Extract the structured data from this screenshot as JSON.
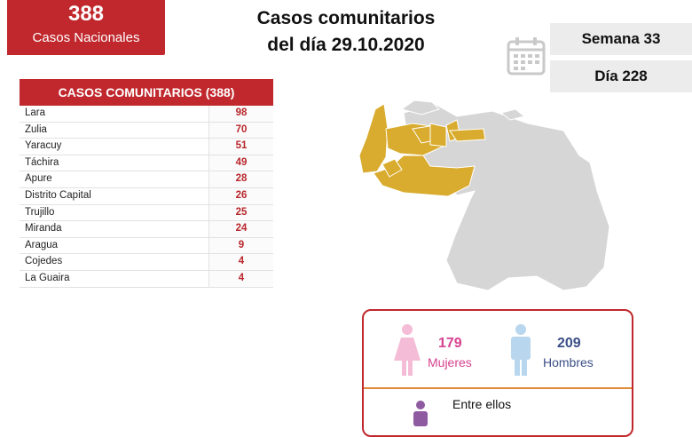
{
  "national": {
    "count": "388",
    "label": "Casos Nacionales"
  },
  "title": {
    "line1": "Casos comunitarios",
    "line2": "del día 29.10.2020"
  },
  "calendar": {
    "icon": "calendar-icon",
    "week": "Semana 33",
    "day": "Día 228"
  },
  "table": {
    "header": "CASOS COMUNITARIOS (388)",
    "rows": [
      {
        "state": "Lara",
        "value": "98"
      },
      {
        "state": "Zulia",
        "value": "70"
      },
      {
        "state": "Yaracuy",
        "value": "51"
      },
      {
        "state": "Táchira",
        "value": "49"
      },
      {
        "state": "Apure",
        "value": "28"
      },
      {
        "state": "Distrito Capital",
        "value": "26"
      },
      {
        "state": "Trujillo",
        "value": "25"
      },
      {
        "state": "Miranda",
        "value": "24"
      },
      {
        "state": "Aragua",
        "value": "9"
      },
      {
        "state": "Cojedes",
        "value": "4"
      },
      {
        "state": "La Guaira",
        "value": "4"
      }
    ]
  },
  "map": {
    "highlight_color": "#d9ac2f",
    "base_color": "#d6d6d6",
    "border_color": "#ffffff"
  },
  "gender": {
    "female": {
      "count": "179",
      "label": "Mujeres",
      "color": "#d6428f",
      "icon": "female-icon"
    },
    "male": {
      "count": "209",
      "label": "Hombres",
      "color": "#3a4f86",
      "icon": "male-icon"
    },
    "among": "Entre ellos"
  }
}
